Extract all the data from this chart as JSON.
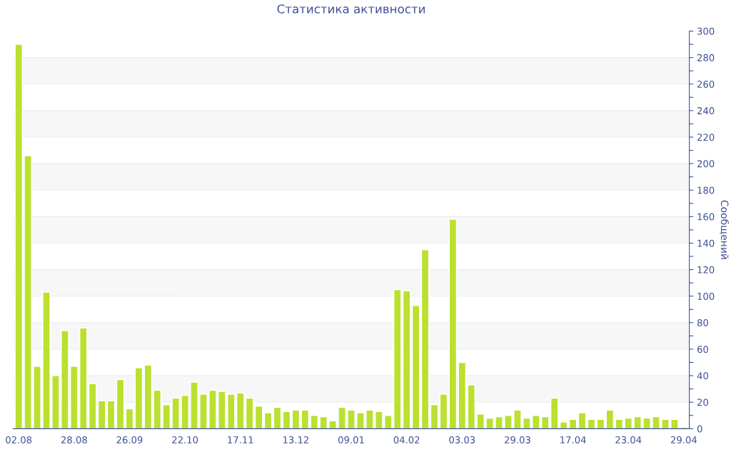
{
  "chart_data": {
    "type": "bar",
    "title": "Статистика активности",
    "ylabel": "Сообщений",
    "categories": [
      "02.08",
      null,
      null,
      null,
      null,
      null,
      "28.08",
      null,
      null,
      null,
      null,
      null,
      "26.09",
      null,
      null,
      null,
      null,
      null,
      "22.10",
      null,
      null,
      null,
      null,
      null,
      "17.11",
      null,
      null,
      null,
      null,
      null,
      "13.12",
      null,
      null,
      null,
      null,
      null,
      "09.01",
      null,
      null,
      null,
      null,
      null,
      "04.02",
      null,
      null,
      null,
      null,
      null,
      "03.03",
      null,
      null,
      null,
      null,
      null,
      "29.03",
      null,
      null,
      null,
      null,
      null,
      "17.04",
      null,
      null,
      null,
      null,
      null,
      "23.04",
      null,
      null,
      null,
      null,
      null,
      "29.04"
    ],
    "values": [
      290,
      206,
      47,
      103,
      40,
      74,
      47,
      76,
      34,
      21,
      21,
      37,
      15,
      46,
      48,
      29,
      18,
      23,
      25,
      35,
      26,
      29,
      28,
      26,
      27,
      23,
      17,
      12,
      16,
      13,
      14,
      14,
      10,
      9,
      6,
      16,
      14,
      12,
      14,
      13,
      10,
      105,
      104,
      93,
      135,
      18,
      26,
      158,
      50,
      33,
      11,
      8,
      9,
      10,
      14,
      8,
      10,
      9,
      23,
      5,
      7,
      12,
      7,
      7,
      14,
      7,
      8,
      9,
      8,
      9,
      7,
      7,
      1
    ],
    "color": "#bbe02f",
    "ylim": [
      0,
      300
    ],
    "yticks": [
      0,
      {
        "value": 10,
        "label": null
      },
      20,
      {
        "value": 30,
        "label": null
      },
      40,
      {
        "value": 50,
        "label": null
      },
      60,
      {
        "value": 70,
        "label": null
      },
      80,
      {
        "value": 90,
        "label": null
      },
      100,
      {
        "value": 110,
        "label": null
      },
      120,
      {
        "value": 130,
        "label": null
      },
      140,
      {
        "value": 150,
        "label": null
      },
      160,
      {
        "value": 170,
        "label": null
      },
      180,
      {
        "value": 190,
        "label": null
      },
      200,
      {
        "value": 210,
        "label": null
      },
      220,
      {
        "value": 230,
        "label": null
      },
      240,
      {
        "value": 250,
        "label": null
      },
      260,
      {
        "value": 270,
        "label": null
      },
      280,
      {
        "value": 290,
        "label": null
      },
      300
    ],
    "grid": "y"
  }
}
